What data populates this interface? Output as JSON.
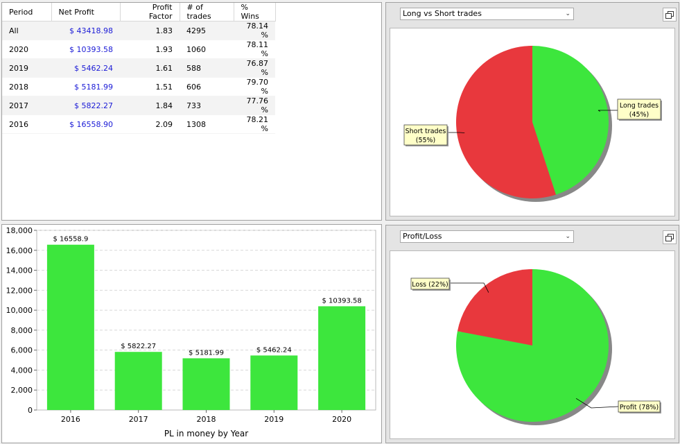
{
  "table": {
    "headers": [
      "Period",
      "Net Profit",
      "Profit Factor",
      "# of trades",
      "% Wins"
    ],
    "rows": [
      [
        "All",
        "$ 43418.98",
        "1.83",
        "4295",
        "78.14 %"
      ],
      [
        "2020",
        "$ 10393.58",
        "1.93",
        "1060",
        "78.11 %"
      ],
      [
        "2019",
        "$ 5462.24",
        "1.61",
        "588",
        "76.87 %"
      ],
      [
        "2018",
        "$ 5181.99",
        "1.51",
        "606",
        "79.70 %"
      ],
      [
        "2017",
        "$ 5822.27",
        "1.84",
        "733",
        "77.76 %"
      ],
      [
        "2016",
        "$ 16558.90",
        "2.09",
        "1308",
        "78.21 %"
      ]
    ]
  },
  "pie1": {
    "selector": "Long vs Short trades"
  },
  "pie2": {
    "selector": "Profit/Loss"
  },
  "colors": {
    "green": "#3de63d",
    "red": "#e8383d",
    "label_bg": "#ffffc8",
    "grid": "#d8d8d8"
  },
  "chart_data": [
    {
      "type": "bar",
      "title": "",
      "xlabel": "PL in money by Year",
      "ylabel": "",
      "categories": [
        "2016",
        "2017",
        "2018",
        "2019",
        "2020"
      ],
      "values": [
        16558.9,
        5822.27,
        5181.99,
        5462.24,
        10393.58
      ],
      "data_labels": [
        "$ 16558.9",
        "$ 5822.27",
        "$ 5181.99",
        "$ 5462.24",
        "$ 10393.58"
      ],
      "ylim": [
        0,
        18000
      ],
      "yticks": [
        0,
        2000,
        4000,
        6000,
        8000,
        10000,
        12000,
        14000,
        16000,
        18000
      ],
      "ytick_labels": [
        "0",
        "2,000",
        "4,000",
        "6,000",
        "8,000",
        "10,000",
        "12,000",
        "14,000",
        "16,000",
        "18,000"
      ],
      "grid": true
    },
    {
      "type": "pie",
      "title": "Long vs Short trades",
      "slices": [
        {
          "label": "Long trades",
          "pct_label": "(45%)",
          "value": 45
        },
        {
          "label": "Short trades",
          "pct_label": "(55%)",
          "value": 55
        }
      ]
    },
    {
      "type": "pie",
      "title": "Profit/Loss",
      "slices": [
        {
          "label": "Profit (78%)",
          "value": 78
        },
        {
          "label": "Loss (22%)",
          "value": 22
        }
      ]
    }
  ]
}
